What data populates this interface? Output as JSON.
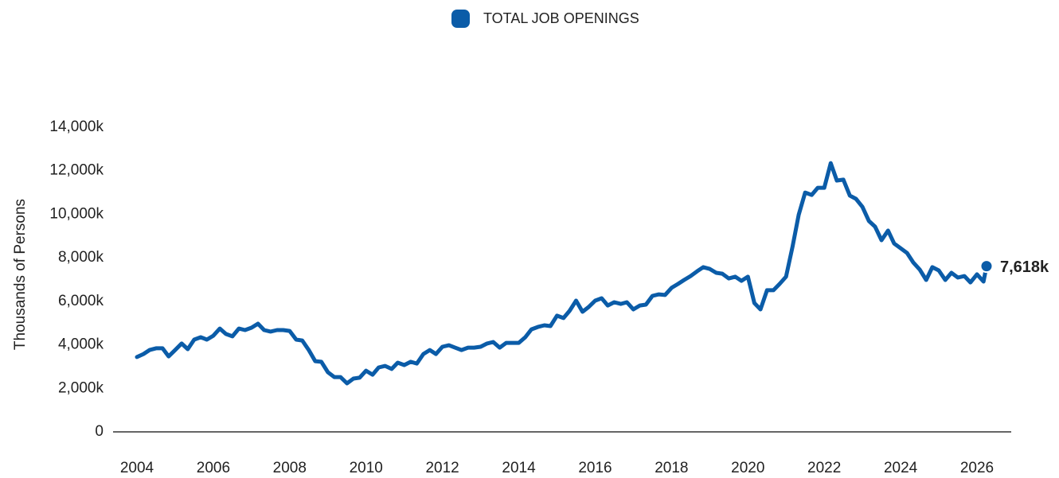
{
  "chart_data": {
    "type": "line",
    "y_label": "Thousands of Persons",
    "x": [
      2004,
      2004.17,
      2004.33,
      2004.5,
      2004.67,
      2004.83,
      2005,
      2005.17,
      2005.33,
      2005.5,
      2005.67,
      2005.83,
      2006,
      2006.17,
      2006.33,
      2006.5,
      2006.67,
      2006.83,
      2007,
      2007.17,
      2007.33,
      2007.5,
      2007.67,
      2007.83,
      2008,
      2008.17,
      2008.33,
      2008.5,
      2008.67,
      2008.83,
      2009,
      2009.17,
      2009.33,
      2009.5,
      2009.67,
      2009.83,
      2010,
      2010.17,
      2010.33,
      2010.5,
      2010.67,
      2010.83,
      2011,
      2011.17,
      2011.33,
      2011.5,
      2011.67,
      2011.83,
      2012,
      2012.17,
      2012.33,
      2012.5,
      2012.67,
      2012.83,
      2013,
      2013.17,
      2013.33,
      2013.5,
      2013.67,
      2013.83,
      2014,
      2014.17,
      2014.33,
      2014.5,
      2014.67,
      2014.83,
      2015,
      2015.17,
      2015.33,
      2015.5,
      2015.67,
      2015.83,
      2016,
      2016.17,
      2016.33,
      2016.5,
      2016.67,
      2016.83,
      2017,
      2017.17,
      2017.33,
      2017.5,
      2017.67,
      2017.83,
      2018,
      2018.17,
      2018.33,
      2018.5,
      2018.67,
      2018.83,
      2019,
      2019.17,
      2019.33,
      2019.5,
      2019.67,
      2019.83,
      2020,
      2020.17,
      2020.33,
      2020.5,
      2020.67,
      2020.83,
      2021,
      2021.17,
      2021.33,
      2021.5,
      2021.67,
      2021.83,
      2022,
      2022.17,
      2022.33,
      2022.5,
      2022.67,
      2022.83,
      2023,
      2023.17,
      2023.33,
      2023.5,
      2023.67,
      2023.83,
      2024,
      2024.17,
      2024.33,
      2024.5,
      2024.67,
      2024.83,
      2025,
      2025.17,
      2025.33,
      2025.5,
      2025.67,
      2025.83,
      2026,
      2026.17,
      2026.25
    ],
    "series": [
      {
        "name": "TOTAL JOB OPENINGS",
        "color": "#0b5ca8",
        "values": [
          3440,
          3580,
          3760,
          3840,
          3840,
          3470,
          3760,
          4060,
          3800,
          4240,
          4350,
          4240,
          4420,
          4750,
          4500,
          4390,
          4750,
          4680,
          4790,
          4970,
          4680,
          4610,
          4680,
          4680,
          4640,
          4240,
          4200,
          3760,
          3250,
          3220,
          2740,
          2520,
          2520,
          2230,
          2450,
          2490,
          2810,
          2630,
          2960,
          3030,
          2890,
          3180,
          3070,
          3220,
          3140,
          3580,
          3760,
          3580,
          3910,
          3980,
          3870,
          3760,
          3870,
          3870,
          3910,
          4060,
          4130,
          3870,
          4090,
          4090,
          4090,
          4350,
          4710,
          4820,
          4900,
          4860,
          5340,
          5230,
          5560,
          6030,
          5520,
          5740,
          6030,
          6140,
          5810,
          5960,
          5880,
          5960,
          5630,
          5810,
          5850,
          6250,
          6320,
          6290,
          6620,
          6800,
          6980,
          7160,
          7380,
          7570,
          7490,
          7310,
          7270,
          7050,
          7130,
          6940,
          7130,
          5920,
          5630,
          6510,
          6510,
          6800,
          7130,
          8520,
          9980,
          11000,
          10890,
          11220,
          11220,
          12350,
          11550,
          11590,
          10860,
          10710,
          10340,
          9690,
          9430,
          8810,
          9250,
          8660,
          8440,
          8220,
          7790,
          7460,
          6980,
          7570,
          7420,
          6980,
          7310,
          7090,
          7160,
          6870,
          7240,
          6910,
          7618
        ],
        "value_labels": [
          null,
          null,
          null,
          null,
          null,
          null,
          null,
          null,
          null,
          null,
          null,
          null,
          null,
          null,
          null,
          null,
          null,
          null,
          null,
          null,
          null,
          null,
          null,
          null,
          null,
          null,
          null,
          null,
          null,
          null,
          null,
          null,
          null,
          null,
          null,
          null,
          null,
          null,
          null,
          null,
          null,
          null,
          null,
          null,
          null,
          null,
          null,
          null,
          null,
          null,
          null,
          null,
          null,
          null,
          null,
          null,
          null,
          null,
          null,
          null,
          null,
          null,
          null,
          null,
          null,
          null,
          null,
          null,
          null,
          null,
          null,
          null,
          null,
          null,
          null,
          null,
          null,
          null,
          null,
          null,
          null,
          null,
          null,
          null,
          null,
          null,
          null,
          null,
          null,
          null,
          null,
          null,
          null,
          null,
          null,
          null,
          null,
          null,
          null,
          null,
          null,
          null,
          null,
          null,
          null,
          null,
          null,
          null,
          null,
          null,
          null,
          null,
          null,
          null,
          null,
          null,
          null,
          null,
          null,
          null,
          null,
          null,
          null,
          null,
          null,
          null,
          null,
          null,
          null,
          null,
          null,
          null,
          null,
          null,
          "7,618k"
        ]
      }
    ],
    "xlim": [
      2004,
      2026
    ],
    "xticks": [
      2004,
      2006,
      2008,
      2010,
      2012,
      2014,
      2016,
      2018,
      2020,
      2022,
      2024,
      2026
    ],
    "ylim": [
      0,
      14000
    ],
    "yticks": [
      0,
      {
        "value": 2000,
        "label": "2,000k"
      },
      {
        "value": 4000,
        "label": "4,000k"
      },
      {
        "value": 6000,
        "label": "6,000k"
      },
      {
        "value": 8000,
        "label": "8,000k"
      },
      {
        "value": 10000,
        "label": "10,000k"
      },
      {
        "value": 12000,
        "label": "12,000k"
      },
      {
        "value": 14000,
        "label": "14,000k"
      }
    ],
    "grid": false,
    "legend": "top"
  }
}
